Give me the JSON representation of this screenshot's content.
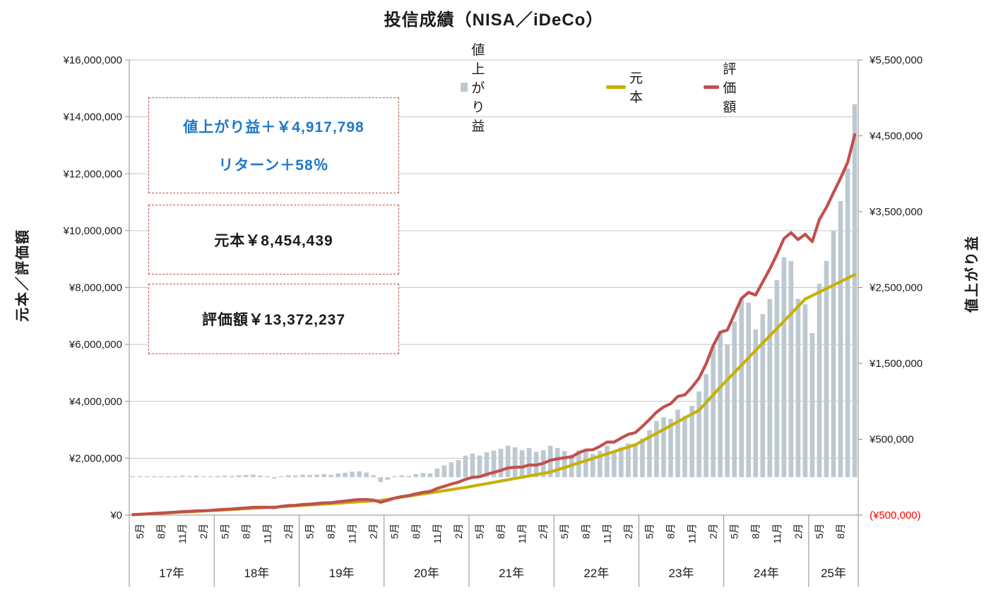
{
  "chart": {
    "title": "投信成績（NISA／iDeCo）",
    "left_axis": {
      "title": "元本／評価額",
      "labels": [
        "¥16,000,000",
        "¥14,000,000",
        "¥12,000,000",
        "¥10,000,000",
        "¥8,000,000",
        "¥6,000,000",
        "¥4,000,000",
        "¥2,000,000",
        "¥0"
      ]
    },
    "right_axis": {
      "title": "値上がり益",
      "labels": [
        "¥5,500,000",
        "¥4,500,000",
        "¥3,500,000",
        "¥2,500,000",
        "¥1,500,000",
        "¥500,000",
        "(¥500,000)"
      ],
      "negative_label_color": "#ff0000"
    },
    "x_axis": {
      "month_tick_labels": [
        "5月",
        "8月",
        "11月",
        "2月"
      ],
      "month_tick_pattern_indices": [
        1,
        4,
        7,
        10
      ],
      "year_labels": [
        "17年",
        "18年",
        "19年",
        "20年",
        "21年",
        "22年",
        "23年",
        "24年",
        "25年"
      ]
    },
    "legend": {
      "gain": "値上がり益",
      "principal": "元本",
      "valuation": "評価額"
    },
    "annotations": {
      "gain_line1": "値上がり益＋￥4,917,798",
      "gain_line2": "リターン＋58％",
      "principal": "元本￥8,454,439",
      "valuation": "評価額￥13,372,237"
    },
    "colors": {
      "bar": "#bdc9d1",
      "principal_line": "#c6b108",
      "valuation_line": "#c0504d",
      "grid": "#c6c6c6",
      "axis": "#8c8c8c",
      "annotation_border": "#c0504d",
      "blue_text": "#1f78c8",
      "black_text": "#1a1a1a",
      "negative_red": "#ff0000"
    }
  },
  "chart_data": {
    "type": "bar",
    "combo": "bar + two lines, dual axes",
    "start_month": "2017-04",
    "months_count": 103,
    "left_axis_range": [
      0,
      16000000
    ],
    "left_axis_step": 2000000,
    "right_axis_range": [
      -500000,
      5500000
    ],
    "right_axis_step": 1000000,
    "grid": "horizontal only",
    "legend_position": "top",
    "series": [
      {
        "name": "値上がり益",
        "type": "bar",
        "axis": "right",
        "values": [
          2000,
          5000,
          3000,
          8000,
          6000,
          10000,
          14000,
          18000,
          15000,
          20000,
          12000,
          10000,
          15000,
          20000,
          16000,
          24000,
          28000,
          34000,
          22000,
          8000,
          -18000,
          12000,
          25000,
          22000,
          32000,
          28000,
          35000,
          42000,
          30000,
          48000,
          58000,
          72000,
          78000,
          62000,
          25000,
          -65000,
          -35000,
          5000,
          22000,
          18000,
          42000,
          55000,
          48000,
          115000,
          155000,
          195000,
          225000,
          285000,
          310000,
          285000,
          330000,
          350000,
          375000,
          415000,
          395000,
          355000,
          385000,
          335000,
          355000,
          415000,
          385000,
          345000,
          295000,
          355000,
          375000,
          305000,
          345000,
          415000,
          335000,
          395000,
          445000,
          425000,
          510000,
          620000,
          740000,
          790000,
          770000,
          890000,
          810000,
          940000,
          1130000,
          1360000,
          1730000,
          1930000,
          1750000,
          2050000,
          2350000,
          2300000,
          1950000,
          2150000,
          2350000,
          2600000,
          2900000,
          2850000,
          2350000,
          2280000,
          1900000,
          2550000,
          2850000,
          3250000,
          3640000,
          4070000,
          4917798
        ]
      },
      {
        "name": "元本",
        "type": "line",
        "axis": "left",
        "values": [
          13000,
          26000,
          39000,
          52000,
          65000,
          78000,
          91000,
          104000,
          117000,
          130000,
          143000,
          156000,
          170000,
          184000,
          198000,
          212000,
          226000,
          240000,
          254000,
          268000,
          282000,
          296000,
          310000,
          324000,
          340000,
          356000,
          372000,
          388000,
          404000,
          420000,
          436000,
          452000,
          468000,
          484000,
          500000,
          516000,
          554000,
          592000,
          630000,
          668000,
          706000,
          744000,
          782000,
          820000,
          858000,
          896000,
          934000,
          972000,
          1017000,
          1062000,
          1107000,
          1152000,
          1197000,
          1242000,
          1287000,
          1332000,
          1377000,
          1422000,
          1467000,
          1512000,
          1592000,
          1672000,
          1752000,
          1832000,
          1912000,
          1992000,
          2072000,
          2152000,
          2232000,
          2312000,
          2392000,
          2472000,
          2607000,
          2742000,
          2877000,
          3012000,
          3147000,
          3282000,
          3417000,
          3552000,
          3687000,
          3957000,
          4227000,
          4497000,
          4755000,
          5013000,
          5271000,
          5529000,
          5787000,
          6045000,
          6303000,
          6561000,
          6819000,
          7077000,
          7335000,
          7593000,
          7716063,
          7839126,
          7962188,
          8085251,
          8208314,
          8331376,
          8454439
        ]
      },
      {
        "name": "評価額",
        "type": "line",
        "axis": "left",
        "values": [
          15000,
          31000,
          42000,
          60000,
          71000,
          88000,
          105000,
          122000,
          132000,
          150000,
          155000,
          166000,
          185000,
          204000,
          214000,
          236000,
          254000,
          274000,
          276000,
          276000,
          264000,
          308000,
          335000,
          346000,
          372000,
          384000,
          407000,
          430000,
          434000,
          468000,
          494000,
          524000,
          546000,
          546000,
          525000,
          451000,
          519000,
          597000,
          652000,
          686000,
          748000,
          799000,
          830000,
          935000,
          1013000,
          1091000,
          1159000,
          1257000,
          1327000,
          1347000,
          1437000,
          1502000,
          1572000,
          1657000,
          1682000,
          1687000,
          1762000,
          1757000,
          1822000,
          1927000,
          1977000,
          2017000,
          2047000,
          2187000,
          2287000,
          2297000,
          2417000,
          2567000,
          2567000,
          2707000,
          2837000,
          2897000,
          3117000,
          3362000,
          3617000,
          3802000,
          3917000,
          4172000,
          4227000,
          4492000,
          4817000,
          5317000,
          5957000,
          6427000,
          6505000,
          7063000,
          7621000,
          7829000,
          7737000,
          8195000,
          8653000,
          9161000,
          9719000,
          9927000,
          9685000,
          9873000,
          9616063,
          10389126,
          10812188,
          11335251,
          11848314,
          12401376,
          13372237
        ]
      }
    ],
    "final_values": {
      "元本": 8454439,
      "評価額": 13372237,
      "値上がり益": 4917798,
      "リターン": "+58%"
    }
  }
}
